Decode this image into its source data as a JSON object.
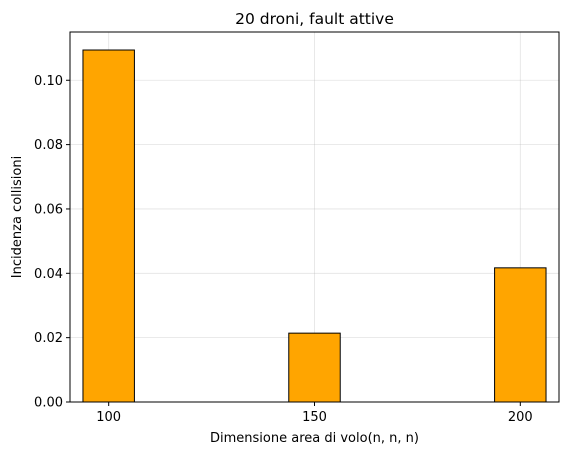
{
  "chart_data": {
    "type": "bar",
    "title": "20 droni, fault attive",
    "xlabel": "Dimensione area di volo(n, n, n)",
    "ylabel": "Incidenza collisioni",
    "x": [
      100,
      150,
      200
    ],
    "values": [
      0.1094,
      0.0214,
      0.0417
    ],
    "bar_width": 12.5,
    "xlim": [
      90.6,
      209.4
    ],
    "ylim": [
      0,
      0.115
    ],
    "x_ticks": [
      "100",
      "150",
      "200"
    ],
    "y_ticks": [
      "0.00",
      "0.02",
      "0.04",
      "0.06",
      "0.08",
      "0.10"
    ],
    "bar_color": "#FFA500",
    "edge_color": "#000000",
    "grid": true,
    "legend": "none"
  }
}
